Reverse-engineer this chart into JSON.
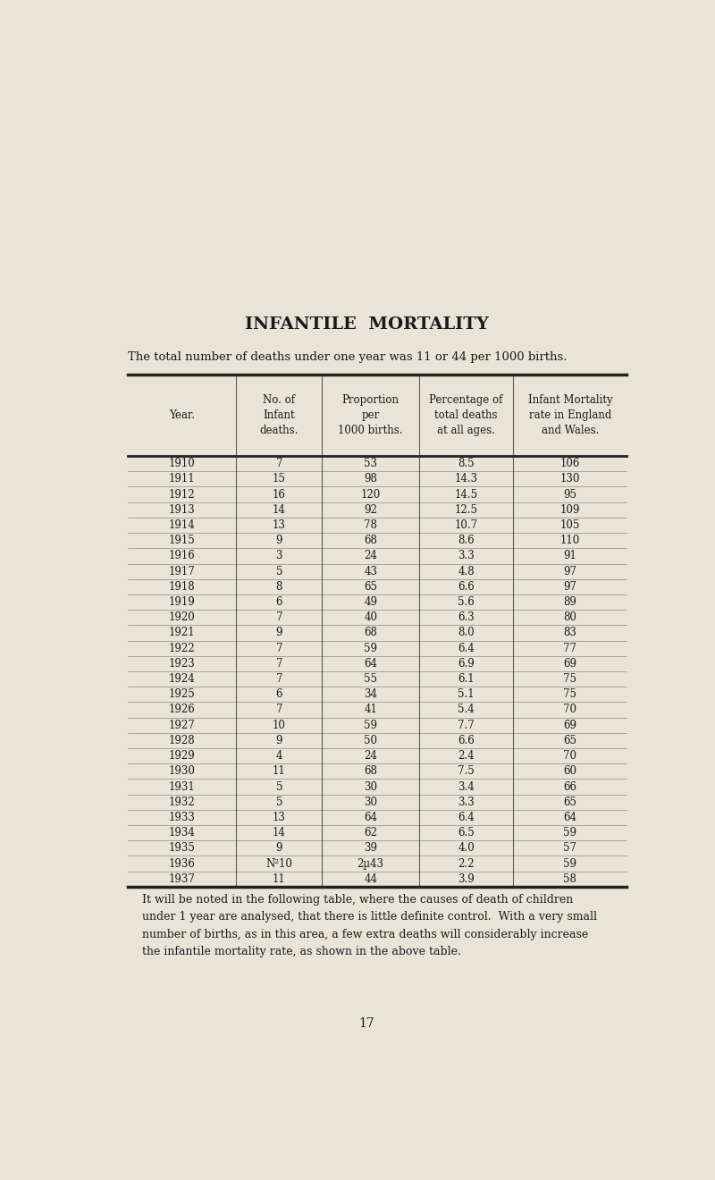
{
  "title": "INFANTILE  MORTALITY",
  "subtitle": "The total number of deaths under one year was 11 or 44 per 1000 births.",
  "headers": [
    "Year.",
    "No. of\nInfant\ndeaths.",
    "Proportion\nper\n1000 births.",
    "Percentage of\ntotal deaths\nat all ages.",
    "Infant Mortality\nrate in England\nand Wales."
  ],
  "rows": [
    [
      "1910",
      "7",
      "53",
      "8.5",
      "106"
    ],
    [
      "1911",
      "15",
      "98",
      "14.3",
      "130"
    ],
    [
      "1912",
      "16",
      "120",
      "14.5",
      "95"
    ],
    [
      "1913",
      "14",
      "92",
      "12.5",
      "109"
    ],
    [
      "1914",
      "13",
      "78",
      "10.7",
      "105"
    ],
    [
      "1915",
      "9",
      "68",
      "8.6",
      "110"
    ],
    [
      "1916",
      "3",
      "24",
      "3.3",
      "91"
    ],
    [
      "1917",
      "5",
      "43",
      "4.8",
      "97"
    ],
    [
      "1918",
      "8",
      "65",
      "6.6",
      "97"
    ],
    [
      "1919",
      "6",
      "49",
      "5.6",
      "89"
    ],
    [
      "1920",
      "7",
      "40",
      "6.3",
      "80"
    ],
    [
      "1921",
      "9",
      "68",
      "8.0",
      "83"
    ],
    [
      "1922",
      "7",
      "59",
      "6.4",
      "77"
    ],
    [
      "1923",
      "7",
      "64",
      "6.9",
      "69"
    ],
    [
      "1924",
      "7",
      "55",
      "6.1",
      "75"
    ],
    [
      "1925",
      "6",
      "34",
      "5.1",
      "75"
    ],
    [
      "1926",
      "7",
      "41",
      "5.4",
      "70"
    ],
    [
      "1927",
      "10",
      "59",
      "7.7",
      "69"
    ],
    [
      "1928",
      "9",
      "50",
      "6.6",
      "65"
    ],
    [
      "1929",
      "4",
      "24",
      "2.4",
      "70"
    ],
    [
      "1930",
      "11",
      "68",
      "7.5",
      "60"
    ],
    [
      "1931",
      "5",
      "30",
      "3.4",
      "66"
    ],
    [
      "1932",
      "5",
      "30",
      "3.3",
      "65"
    ],
    [
      "1933",
      "13",
      "64",
      "6.4",
      "64"
    ],
    [
      "1934",
      "14",
      "62",
      "6.5",
      "59"
    ],
    [
      "1935",
      "9",
      "39",
      "4.0",
      "57"
    ],
    [
      "1936",
      "N²10",
      "2µ43",
      "2.2",
      "59"
    ],
    [
      "1937",
      "11",
      "44",
      "3.9",
      "58"
    ]
  ],
  "footer_text": "It will be noted in the following table, where the causes of death of children\nunder 1 year are analysed, that there is little definite control.  With a very small\nnumber of births, as in this area, a few extra deaths will considerably increase\nthe infantile mortality rate, as shown in the above table.",
  "page_number": "17",
  "bg_color": "#e8e4d8",
  "text_color": "#1a1a1a",
  "line_color": "#222222"
}
